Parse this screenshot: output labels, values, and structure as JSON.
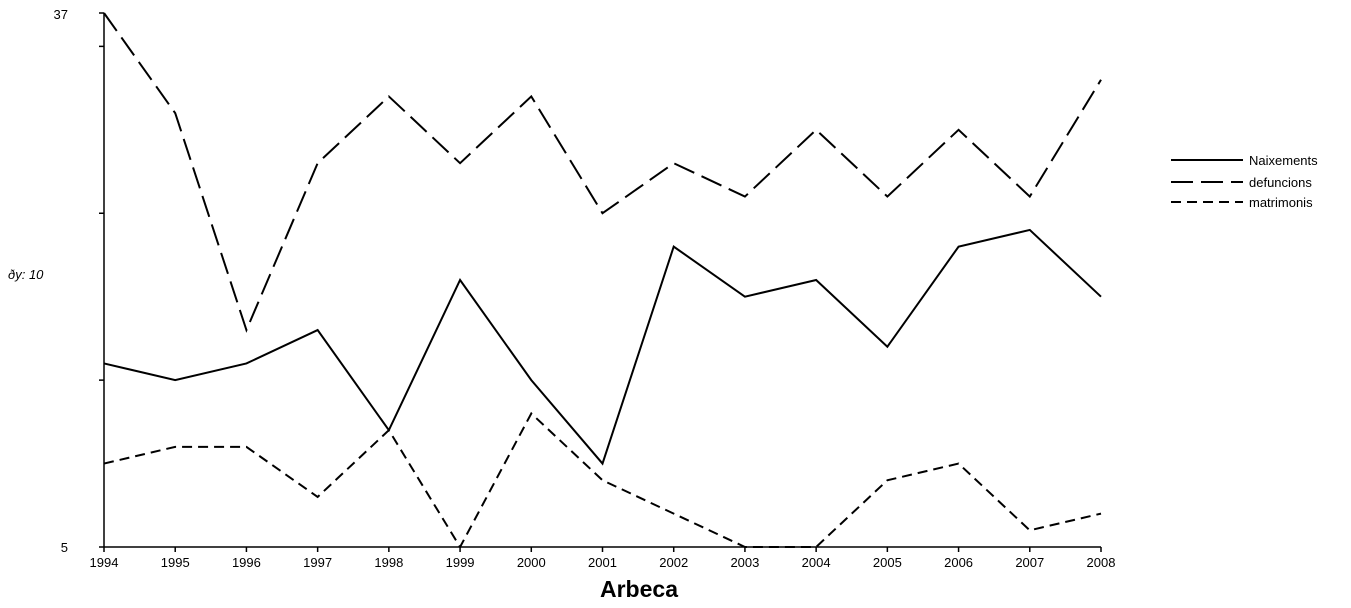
{
  "chart_data": {
    "type": "line",
    "title": "Arbeca",
    "side_label": "ðy: 10",
    "x": [
      "1994",
      "1995",
      "1996",
      "1997",
      "1998",
      "1999",
      "2000",
      "2001",
      "2002",
      "2003",
      "2004",
      "2005",
      "2006",
      "2007",
      "2008"
    ],
    "ylim": [
      5,
      37
    ],
    "y_tick_labels": [
      "37",
      "5"
    ],
    "series": [
      {
        "name": "Naixements",
        "dash": "solid",
        "values": [
          16,
          15,
          16,
          18,
          12,
          21,
          15,
          10,
          23,
          20,
          21,
          17,
          23,
          24,
          20
        ]
      },
      {
        "name": "defuncions",
        "dash": "long-dash",
        "values": [
          37,
          31,
          18,
          28,
          32,
          28,
          32,
          25,
          28,
          26,
          30,
          26,
          30,
          26,
          33
        ]
      },
      {
        "name": "matrimonis",
        "dash": "short-dash",
        "values": [
          10,
          11,
          11,
          8,
          12,
          5,
          13,
          9,
          7,
          5,
          5,
          9,
          10,
          6,
          7
        ]
      }
    ],
    "legend_position": "right",
    "grid": false
  }
}
